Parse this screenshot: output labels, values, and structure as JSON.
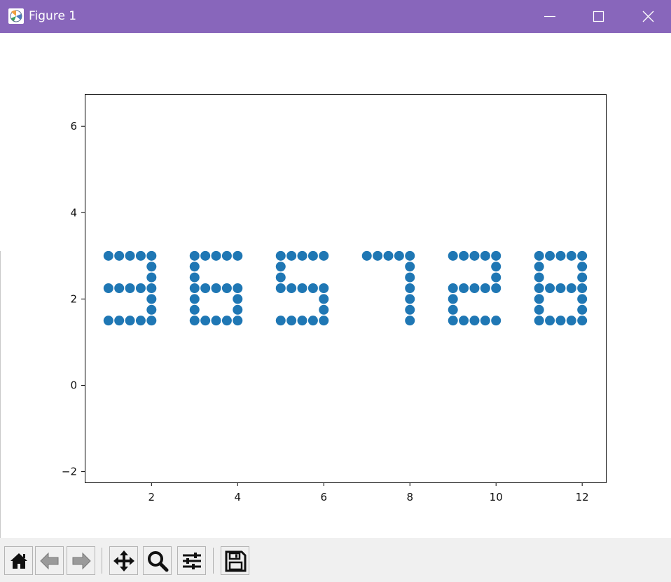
{
  "window": {
    "title": "Figure 1",
    "titlebar_color": "#8866bb",
    "controls": [
      "minimize-icon",
      "maximize-icon",
      "close-icon"
    ]
  },
  "toolbar": {
    "buttons": [
      {
        "name": "home-button",
        "icon": "home-icon"
      },
      {
        "name": "back-button",
        "icon": "arrow-left-icon"
      },
      {
        "name": "forward-button",
        "icon": "arrow-right-icon"
      },
      {
        "name": "pan-button",
        "icon": "move-icon"
      },
      {
        "name": "zoom-button",
        "icon": "magnifier-icon"
      },
      {
        "name": "configure-subplots-button",
        "icon": "sliders-icon"
      },
      {
        "name": "save-button",
        "icon": "floppy-disk-icon"
      }
    ]
  },
  "chart_data": {
    "type": "scatter",
    "title": "",
    "xlabel": "",
    "ylabel": "",
    "xlim": [
      0.45,
      12.55
    ],
    "ylim": [
      -2.25,
      6.75
    ],
    "xticks": [
      2,
      4,
      6,
      8,
      10,
      12
    ],
    "xtick_labels": [
      "2",
      "4",
      "6",
      "8",
      "10",
      "12"
    ],
    "yticks": [
      -2,
      0,
      2,
      4,
      6
    ],
    "ytick_labels": [
      "−2",
      "0",
      "2",
      "4",
      "6"
    ],
    "grid": false,
    "marker_color": "#1f77b4",
    "points": [
      [
        1,
        3
      ],
      [
        1.25,
        3
      ],
      [
        1.5,
        3
      ],
      [
        1.75,
        3
      ],
      [
        2,
        3
      ],
      [
        2,
        2.75
      ],
      [
        2,
        2.5
      ],
      [
        1,
        2.25
      ],
      [
        1.25,
        2.25
      ],
      [
        1.5,
        2.25
      ],
      [
        1.75,
        2.25
      ],
      [
        2,
        2.25
      ],
      [
        2,
        2
      ],
      [
        2,
        1.75
      ],
      [
        1,
        1.5
      ],
      [
        1.25,
        1.5
      ],
      [
        1.5,
        1.5
      ],
      [
        1.75,
        1.5
      ],
      [
        2,
        1.5
      ],
      [
        3,
        3
      ],
      [
        3.25,
        3
      ],
      [
        3.5,
        3
      ],
      [
        3.75,
        3
      ],
      [
        4,
        3
      ],
      [
        3,
        2.75
      ],
      [
        3,
        2.5
      ],
      [
        3,
        2.25
      ],
      [
        3.25,
        2.25
      ],
      [
        3.5,
        2.25
      ],
      [
        3.75,
        2.25
      ],
      [
        4,
        2.25
      ],
      [
        3,
        2
      ],
      [
        4,
        2
      ],
      [
        3,
        1.75
      ],
      [
        4,
        1.75
      ],
      [
        3,
        1.5
      ],
      [
        3.25,
        1.5
      ],
      [
        3.5,
        1.5
      ],
      [
        3.75,
        1.5
      ],
      [
        4,
        1.5
      ],
      [
        5,
        3
      ],
      [
        5.25,
        3
      ],
      [
        5.5,
        3
      ],
      [
        5.75,
        3
      ],
      [
        6,
        3
      ],
      [
        5,
        2.75
      ],
      [
        5,
        2.5
      ],
      [
        5,
        2.25
      ],
      [
        5.25,
        2.25
      ],
      [
        5.5,
        2.25
      ],
      [
        5.75,
        2.25
      ],
      [
        6,
        2.25
      ],
      [
        6,
        2
      ],
      [
        6,
        1.75
      ],
      [
        5,
        1.5
      ],
      [
        5.25,
        1.5
      ],
      [
        5.5,
        1.5
      ],
      [
        5.75,
        1.5
      ],
      [
        6,
        1.5
      ],
      [
        7,
        3
      ],
      [
        7.25,
        3
      ],
      [
        7.5,
        3
      ],
      [
        7.75,
        3
      ],
      [
        8,
        3
      ],
      [
        8,
        2.75
      ],
      [
        8,
        2.5
      ],
      [
        8,
        2.25
      ],
      [
        8,
        2
      ],
      [
        8,
        1.75
      ],
      [
        8,
        1.5
      ],
      [
        9,
        3
      ],
      [
        9.25,
        3
      ],
      [
        9.5,
        3
      ],
      [
        9.75,
        3
      ],
      [
        10,
        3
      ],
      [
        10,
        2.75
      ],
      [
        10,
        2.5
      ],
      [
        9,
        2.25
      ],
      [
        9.25,
        2.25
      ],
      [
        9.5,
        2.25
      ],
      [
        9.75,
        2.25
      ],
      [
        10,
        2.25
      ],
      [
        9,
        2
      ],
      [
        9,
        1.75
      ],
      [
        9,
        1.5
      ],
      [
        9.25,
        1.5
      ],
      [
        9.5,
        1.5
      ],
      [
        9.75,
        1.5
      ],
      [
        10,
        1.5
      ],
      [
        11,
        3
      ],
      [
        11.25,
        3
      ],
      [
        11.5,
        3
      ],
      [
        11.75,
        3
      ],
      [
        12,
        3
      ],
      [
        11,
        2.75
      ],
      [
        12,
        2.75
      ],
      [
        11,
        2.5
      ],
      [
        12,
        2.5
      ],
      [
        11,
        2.25
      ],
      [
        11.25,
        2.25
      ],
      [
        11.5,
        2.25
      ],
      [
        11.75,
        2.25
      ],
      [
        12,
        2.25
      ],
      [
        11,
        2
      ],
      [
        12,
        2
      ],
      [
        11,
        1.75
      ],
      [
        12,
        1.75
      ],
      [
        11,
        1.5
      ],
      [
        11.25,
        1.5
      ],
      [
        11.5,
        1.5
      ],
      [
        11.75,
        1.5
      ],
      [
        12,
        1.5
      ]
    ]
  }
}
